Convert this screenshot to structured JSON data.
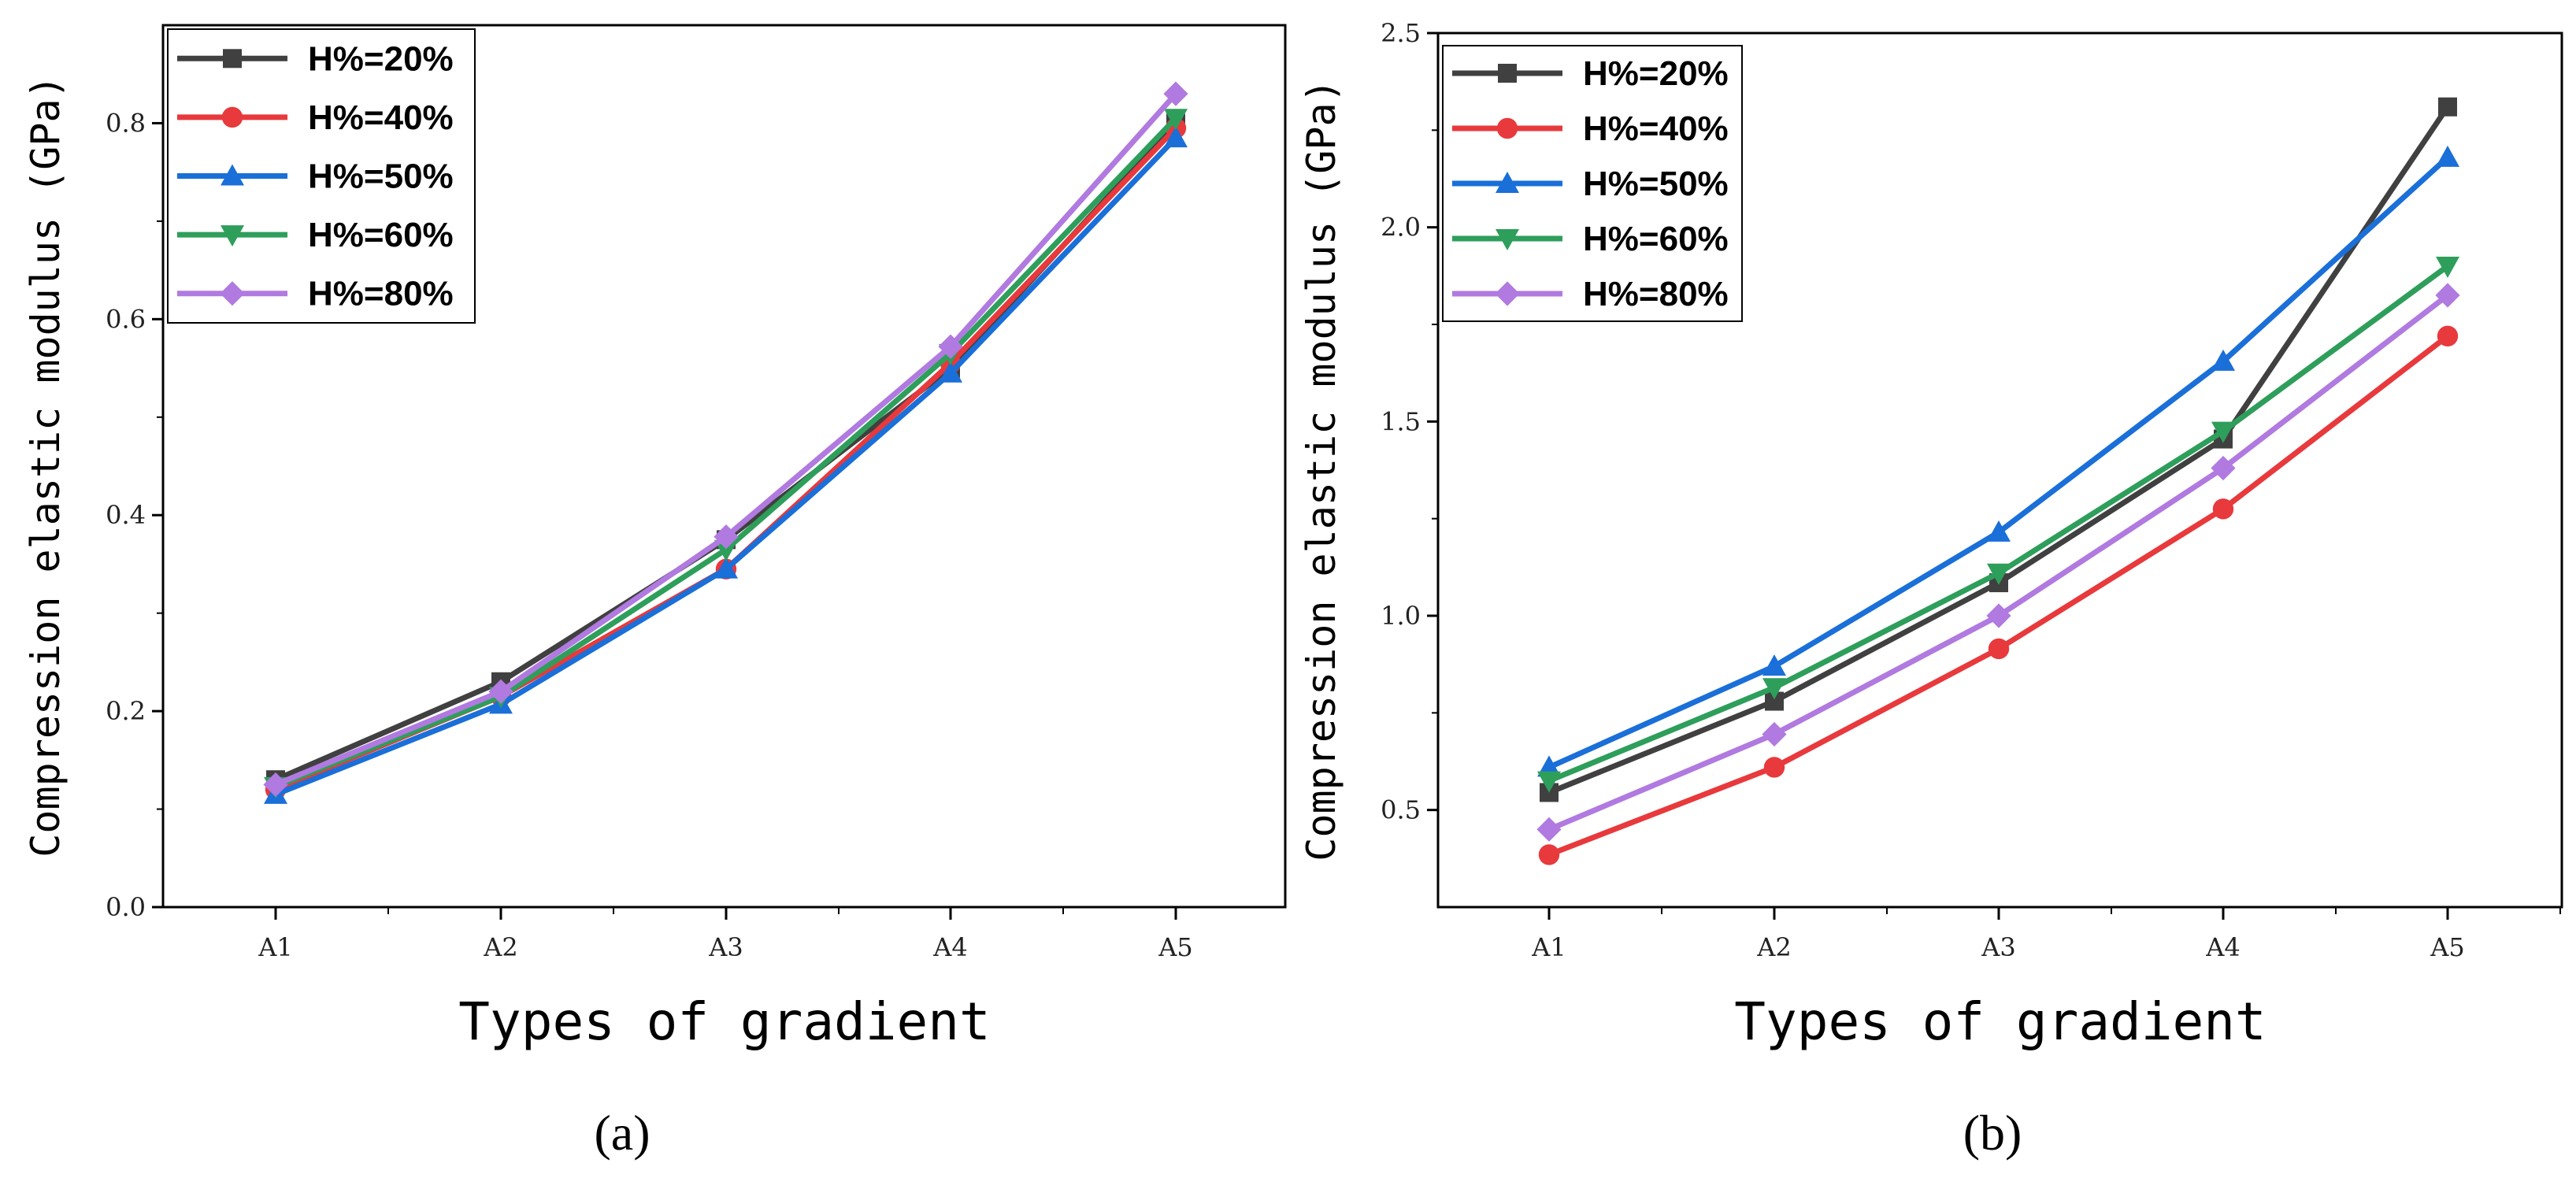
{
  "chart_data": [
    {
      "type": "line",
      "panel_label": "(a)",
      "title": "",
      "xlabel": "Types of gradient",
      "ylabel": "Compression elastic modulus (GPa)",
      "categories": [
        "A1",
        "A2",
        "A3",
        "A4",
        "A5"
      ],
      "ylim": [
        0,
        0.9
      ],
      "yticks": [
        0.0,
        0.2,
        0.4,
        0.6,
        0.8
      ],
      "ytick_labels": [
        "0.0",
        "0.2",
        "0.4",
        "0.6",
        "0.8"
      ],
      "legend_position": "top-left",
      "series": [
        {
          "name": "H%=20%",
          "color": "#404040",
          "marker": "square",
          "values": [
            0.13,
            0.23,
            0.375,
            0.55,
            0.8
          ]
        },
        {
          "name": "H%=40%",
          "color": "#e8393c",
          "marker": "circle",
          "values": [
            0.12,
            0.215,
            0.345,
            0.555,
            0.795
          ]
        },
        {
          "name": "H%=50%",
          "color": "#1a6fd8",
          "marker": "triangle-up",
          "values": [
            0.115,
            0.207,
            0.345,
            0.545,
            0.785
          ]
        },
        {
          "name": "H%=60%",
          "color": "#2e9e5b",
          "marker": "triangle-down",
          "values": [
            0.123,
            0.215,
            0.365,
            0.565,
            0.805
          ]
        },
        {
          "name": "H%=80%",
          "color": "#b07ae0",
          "marker": "diamond",
          "values": [
            0.125,
            0.22,
            0.378,
            0.572,
            0.83
          ]
        }
      ]
    },
    {
      "type": "line",
      "panel_label": "(b)",
      "title": "",
      "xlabel": "Types of gradient",
      "ylabel": "Compression elastic modulus (GPa)",
      "categories": [
        "A1",
        "A2",
        "A3",
        "A4",
        "A5"
      ],
      "ylim": [
        0.25,
        2.5
      ],
      "yticks": [
        0.5,
        1.0,
        1.5,
        2.0,
        2.5
      ],
      "ytick_labels": [
        "0.5",
        "1.0",
        "1.5",
        "2.0",
        "2.5"
      ],
      "legend_position": "top-left",
      "series": [
        {
          "name": "H%=20%",
          "color": "#404040",
          "marker": "square",
          "values": [
            0.545,
            0.78,
            1.085,
            1.455,
            2.31
          ]
        },
        {
          "name": "H%=40%",
          "color": "#e8393c",
          "marker": "circle",
          "values": [
            0.385,
            0.61,
            0.915,
            1.275,
            1.72
          ]
        },
        {
          "name": "H%=50%",
          "color": "#1a6fd8",
          "marker": "triangle-up",
          "values": [
            0.61,
            0.87,
            1.215,
            1.655,
            2.18
          ]
        },
        {
          "name": "H%=60%",
          "color": "#2e9e5b",
          "marker": "triangle-down",
          "values": [
            0.575,
            0.815,
            1.11,
            1.475,
            1.9
          ]
        },
        {
          "name": "H%=80%",
          "color": "#b07ae0",
          "marker": "diamond",
          "values": [
            0.45,
            0.695,
            1.0,
            1.38,
            1.825
          ]
        }
      ]
    }
  ]
}
